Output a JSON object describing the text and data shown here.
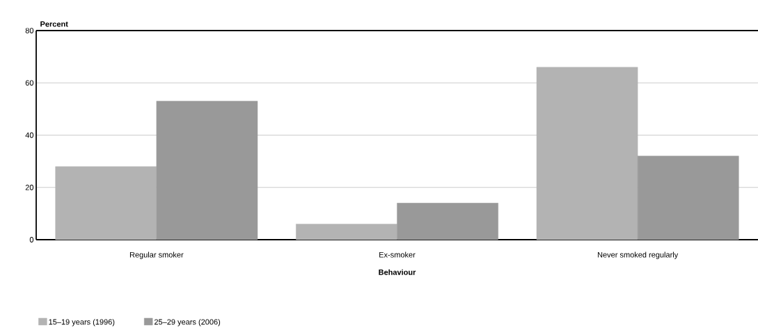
{
  "chart_data": {
    "type": "bar",
    "xlabel": "Behaviour",
    "ylabel": "Percent",
    "categories": [
      "Regular smoker",
      "Ex-smoker",
      "Never smoked regularly"
    ],
    "series": [
      {
        "name": "15–19 years (1996)",
        "color": "#b3b3b3",
        "values": [
          28,
          6,
          66
        ]
      },
      {
        "name": "25–29 years (2006)",
        "color": "#999999",
        "values": [
          53,
          14,
          32
        ]
      }
    ],
    "ylim": [
      0,
      80
    ],
    "yticks": [
      0,
      20,
      40,
      60,
      80
    ],
    "grid": "y",
    "legend": "bottom left"
  }
}
